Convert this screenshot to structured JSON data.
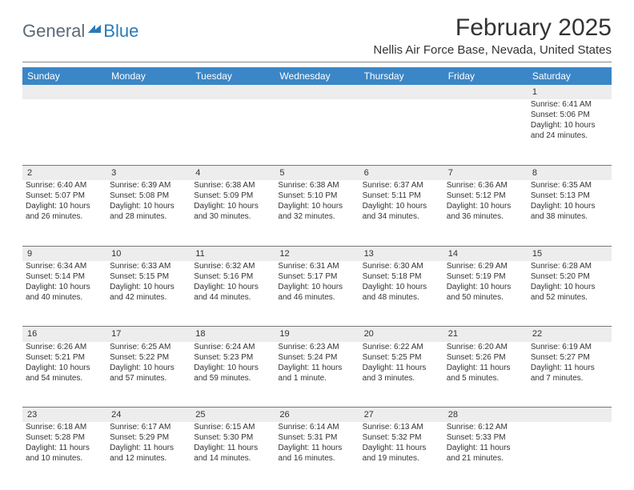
{
  "logo": {
    "part1": "General",
    "part2": "Blue"
  },
  "header": {
    "title": "February 2025",
    "subtitle": "Nellis Air Force Base, Nevada, United States"
  },
  "colors": {
    "header_bg": "#3b86c6",
    "header_text": "#ffffff",
    "daynum_bg": "#ededed",
    "text": "#333333",
    "logo_gray": "#5a6a78",
    "logo_blue": "#2a7ab8",
    "divider": "#888888"
  },
  "weekdays": [
    "Sunday",
    "Monday",
    "Tuesday",
    "Wednesday",
    "Thursday",
    "Friday",
    "Saturday"
  ],
  "weeks": [
    [
      {
        "day": "",
        "lines": []
      },
      {
        "day": "",
        "lines": []
      },
      {
        "day": "",
        "lines": []
      },
      {
        "day": "",
        "lines": []
      },
      {
        "day": "",
        "lines": []
      },
      {
        "day": "",
        "lines": []
      },
      {
        "day": "1",
        "lines": [
          "Sunrise: 6:41 AM",
          "Sunset: 5:06 PM",
          "Daylight: 10 hours and 24 minutes."
        ]
      }
    ],
    [
      {
        "day": "2",
        "lines": [
          "Sunrise: 6:40 AM",
          "Sunset: 5:07 PM",
          "Daylight: 10 hours and 26 minutes."
        ]
      },
      {
        "day": "3",
        "lines": [
          "Sunrise: 6:39 AM",
          "Sunset: 5:08 PM",
          "Daylight: 10 hours and 28 minutes."
        ]
      },
      {
        "day": "4",
        "lines": [
          "Sunrise: 6:38 AM",
          "Sunset: 5:09 PM",
          "Daylight: 10 hours and 30 minutes."
        ]
      },
      {
        "day": "5",
        "lines": [
          "Sunrise: 6:38 AM",
          "Sunset: 5:10 PM",
          "Daylight: 10 hours and 32 minutes."
        ]
      },
      {
        "day": "6",
        "lines": [
          "Sunrise: 6:37 AM",
          "Sunset: 5:11 PM",
          "Daylight: 10 hours and 34 minutes."
        ]
      },
      {
        "day": "7",
        "lines": [
          "Sunrise: 6:36 AM",
          "Sunset: 5:12 PM",
          "Daylight: 10 hours and 36 minutes."
        ]
      },
      {
        "day": "8",
        "lines": [
          "Sunrise: 6:35 AM",
          "Sunset: 5:13 PM",
          "Daylight: 10 hours and 38 minutes."
        ]
      }
    ],
    [
      {
        "day": "9",
        "lines": [
          "Sunrise: 6:34 AM",
          "Sunset: 5:14 PM",
          "Daylight: 10 hours and 40 minutes."
        ]
      },
      {
        "day": "10",
        "lines": [
          "Sunrise: 6:33 AM",
          "Sunset: 5:15 PM",
          "Daylight: 10 hours and 42 minutes."
        ]
      },
      {
        "day": "11",
        "lines": [
          "Sunrise: 6:32 AM",
          "Sunset: 5:16 PM",
          "Daylight: 10 hours and 44 minutes."
        ]
      },
      {
        "day": "12",
        "lines": [
          "Sunrise: 6:31 AM",
          "Sunset: 5:17 PM",
          "Daylight: 10 hours and 46 minutes."
        ]
      },
      {
        "day": "13",
        "lines": [
          "Sunrise: 6:30 AM",
          "Sunset: 5:18 PM",
          "Daylight: 10 hours and 48 minutes."
        ]
      },
      {
        "day": "14",
        "lines": [
          "Sunrise: 6:29 AM",
          "Sunset: 5:19 PM",
          "Daylight: 10 hours and 50 minutes."
        ]
      },
      {
        "day": "15",
        "lines": [
          "Sunrise: 6:28 AM",
          "Sunset: 5:20 PM",
          "Daylight: 10 hours and 52 minutes."
        ]
      }
    ],
    [
      {
        "day": "16",
        "lines": [
          "Sunrise: 6:26 AM",
          "Sunset: 5:21 PM",
          "Daylight: 10 hours and 54 minutes."
        ]
      },
      {
        "day": "17",
        "lines": [
          "Sunrise: 6:25 AM",
          "Sunset: 5:22 PM",
          "Daylight: 10 hours and 57 minutes."
        ]
      },
      {
        "day": "18",
        "lines": [
          "Sunrise: 6:24 AM",
          "Sunset: 5:23 PM",
          "Daylight: 10 hours and 59 minutes."
        ]
      },
      {
        "day": "19",
        "lines": [
          "Sunrise: 6:23 AM",
          "Sunset: 5:24 PM",
          "Daylight: 11 hours and 1 minute."
        ]
      },
      {
        "day": "20",
        "lines": [
          "Sunrise: 6:22 AM",
          "Sunset: 5:25 PM",
          "Daylight: 11 hours and 3 minutes."
        ]
      },
      {
        "day": "21",
        "lines": [
          "Sunrise: 6:20 AM",
          "Sunset: 5:26 PM",
          "Daylight: 11 hours and 5 minutes."
        ]
      },
      {
        "day": "22",
        "lines": [
          "Sunrise: 6:19 AM",
          "Sunset: 5:27 PM",
          "Daylight: 11 hours and 7 minutes."
        ]
      }
    ],
    [
      {
        "day": "23",
        "lines": [
          "Sunrise: 6:18 AM",
          "Sunset: 5:28 PM",
          "Daylight: 11 hours and 10 minutes."
        ]
      },
      {
        "day": "24",
        "lines": [
          "Sunrise: 6:17 AM",
          "Sunset: 5:29 PM",
          "Daylight: 11 hours and 12 minutes."
        ]
      },
      {
        "day": "25",
        "lines": [
          "Sunrise: 6:15 AM",
          "Sunset: 5:30 PM",
          "Daylight: 11 hours and 14 minutes."
        ]
      },
      {
        "day": "26",
        "lines": [
          "Sunrise: 6:14 AM",
          "Sunset: 5:31 PM",
          "Daylight: 11 hours and 16 minutes."
        ]
      },
      {
        "day": "27",
        "lines": [
          "Sunrise: 6:13 AM",
          "Sunset: 5:32 PM",
          "Daylight: 11 hours and 19 minutes."
        ]
      },
      {
        "day": "28",
        "lines": [
          "Sunrise: 6:12 AM",
          "Sunset: 5:33 PM",
          "Daylight: 11 hours and 21 minutes."
        ]
      },
      {
        "day": "",
        "lines": []
      }
    ]
  ]
}
